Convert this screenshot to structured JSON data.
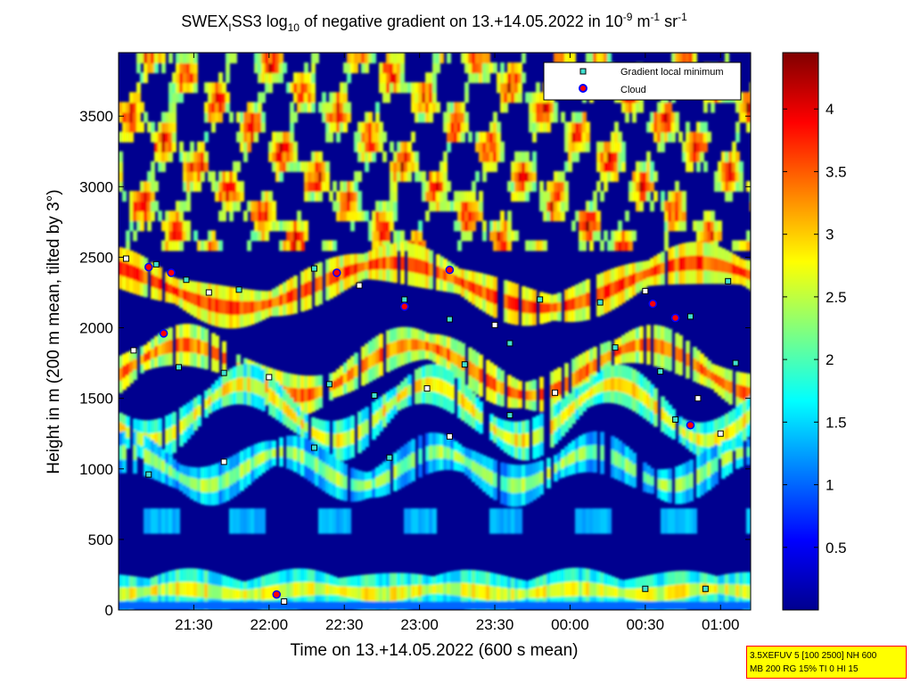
{
  "title": {
    "prefix": "SWEX",
    "sub1": "I",
    "mid": "SS3 log",
    "sub2": "10",
    "rest": " of negative gradient on 13.+14.05.2022 in 10",
    "sup1": "-9",
    "unit_m": " m",
    "sup2": "-1",
    "unit_sr": " sr",
    "sup3": "-1"
  },
  "xlabel": "Time on 13.+14.05.2022 (600 s mean)",
  "ylabel": "Height in m (200 m mean, tilted by 3°)",
  "legend": {
    "min_label": "Gradient local minimum",
    "cloud_label": "Cloud"
  },
  "info": {
    "line1": "3.5XEFUV 5 [100 2500] NH 600",
    "line2": "MB 200 RG 15% TI 0 HI 15"
  },
  "colors": {
    "min_marker": "#40e0d0",
    "cloud_marker": "#ff0000",
    "cloud_edge": "#0000ff"
  },
  "chart_data": {
    "type": "heatmap",
    "x_ticks": [
      "21:30",
      "22:00",
      "22:30",
      "23:00",
      "23:30",
      "00:00",
      "00:30",
      "01:00"
    ],
    "x_tick_hours": [
      21.5,
      22.0,
      22.5,
      23.0,
      23.5,
      24.0,
      24.5,
      25.0
    ],
    "xlim": [
      21.0,
      25.2
    ],
    "y_ticks": [
      "0",
      "500",
      "1000",
      "1500",
      "2000",
      "2500",
      "3000",
      "3500"
    ],
    "y_tick_values": [
      0,
      500,
      1000,
      1500,
      2000,
      2500,
      3000,
      3500
    ],
    "ylim": [
      0,
      3950
    ],
    "colorbar_ticks": [
      "0.5",
      "1",
      "1.5",
      "2",
      "2.5",
      "3",
      "3.5",
      "4"
    ],
    "colorbar_tick_values": [
      0.5,
      1,
      1.5,
      2,
      2.5,
      3,
      3.5,
      4
    ],
    "clim": [
      0,
      4.45
    ],
    "colormap": "jet",
    "layers": [
      {
        "base_m": 2300,
        "amplitude_m": 160,
        "value": 2.5
      },
      {
        "base_m": 1700,
        "amplitude_m": 180,
        "value": 2.3
      },
      {
        "base_m": 1400,
        "amplitude_m": 200,
        "value": 1.7
      },
      {
        "base_m": 1000,
        "amplitude_m": 120,
        "value": 1.2
      },
      {
        "base_m": 130,
        "amplitude_m": 20,
        "value": 1.6
      }
    ],
    "minimum_series": [
      {
        "x": 21.05,
        "y": 2490
      },
      {
        "x": 21.25,
        "y": 2450
      },
      {
        "x": 21.45,
        "y": 2340
      },
      {
        "x": 21.6,
        "y": 2250
      },
      {
        "x": 21.8,
        "y": 2270
      },
      {
        "x": 22.3,
        "y": 2420
      },
      {
        "x": 22.6,
        "y": 2300
      },
      {
        "x": 22.9,
        "y": 2200
      },
      {
        "x": 23.2,
        "y": 2060
      },
      {
        "x": 23.5,
        "y": 2020
      },
      {
        "x": 23.8,
        "y": 2200
      },
      {
        "x": 24.2,
        "y": 2180
      },
      {
        "x": 24.5,
        "y": 2260
      },
      {
        "x": 24.8,
        "y": 2080
      },
      {
        "x": 25.05,
        "y": 2330
      },
      {
        "x": 21.1,
        "y": 1840
      },
      {
        "x": 21.4,
        "y": 1720
      },
      {
        "x": 21.7,
        "y": 1680
      },
      {
        "x": 22.0,
        "y": 1650
      },
      {
        "x": 22.4,
        "y": 1600
      },
      {
        "x": 22.7,
        "y": 1520
      },
      {
        "x": 23.05,
        "y": 1570
      },
      {
        "x": 23.3,
        "y": 1740
      },
      {
        "x": 23.6,
        "y": 1890
      },
      {
        "x": 23.9,
        "y": 1540
      },
      {
        "x": 24.3,
        "y": 1860
      },
      {
        "x": 24.6,
        "y": 1690
      },
      {
        "x": 24.85,
        "y": 1500
      },
      {
        "x": 25.1,
        "y": 1750
      },
      {
        "x": 21.2,
        "y": 960
      },
      {
        "x": 21.7,
        "y": 1050
      },
      {
        "x": 22.3,
        "y": 1150
      },
      {
        "x": 22.8,
        "y": 1080
      },
      {
        "x": 23.2,
        "y": 1230
      },
      {
        "x": 23.6,
        "y": 1380
      },
      {
        "x": 24.7,
        "y": 1350
      },
      {
        "x": 25.0,
        "y": 1250
      },
      {
        "x": 24.5,
        "y": 150
      },
      {
        "x": 24.9,
        "y": 150
      },
      {
        "x": 22.1,
        "y": 60
      }
    ],
    "cloud_series": [
      {
        "x": 21.2,
        "y": 2430
      },
      {
        "x": 21.35,
        "y": 2390
      },
      {
        "x": 22.45,
        "y": 2390
      },
      {
        "x": 22.9,
        "y": 2150
      },
      {
        "x": 23.2,
        "y": 2410
      },
      {
        "x": 24.55,
        "y": 2170
      },
      {
        "x": 24.7,
        "y": 2070
      },
      {
        "x": 21.3,
        "y": 1960
      },
      {
        "x": 24.8,
        "y": 1310
      },
      {
        "x": 22.05,
        "y": 110
      }
    ]
  }
}
